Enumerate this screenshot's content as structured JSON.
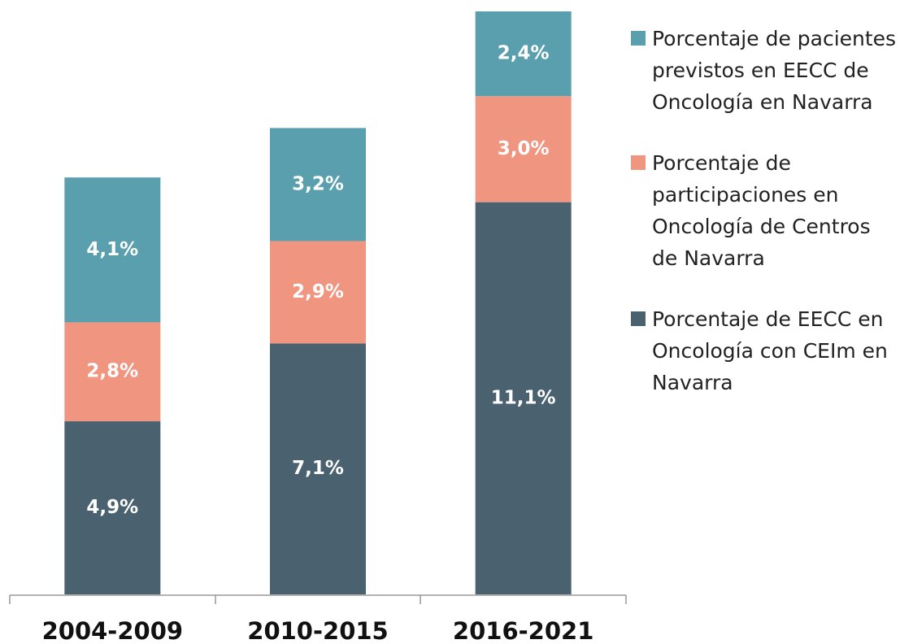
{
  "chart_data": {
    "type": "stacked_bar",
    "categories": [
      "2004-2009",
      "2010-2015",
      "2016-2021"
    ],
    "series": [
      {
        "name": "Porcentaje de EECC en Oncología con CEIm en Navarra",
        "color": "#4a6270",
        "values": [
          4.9,
          7.1,
          11.1
        ],
        "value_labels": [
          "4,9%",
          "7,1%",
          "11,1%"
        ]
      },
      {
        "name": "Porcentaje de participaciones en Oncología de Centros de Navarra",
        "color": "#f09580",
        "values": [
          2.8,
          2.9,
          3.0
        ],
        "value_labels": [
          "2,8%",
          "2,9%",
          "3,0%"
        ]
      },
      {
        "name": "Porcentaje de pacientes previstos en EECC de Oncología en Navarra",
        "color": "#5a9fae",
        "values": [
          4.1,
          3.2,
          2.4
        ],
        "value_labels": [
          "4,1%",
          "3,2%",
          "2,4%"
        ]
      }
    ],
    "legend": "right"
  }
}
